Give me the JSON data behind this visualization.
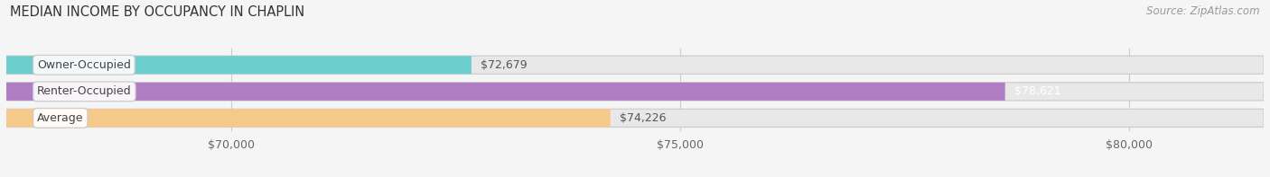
{
  "title": "MEDIAN INCOME BY OCCUPANCY IN CHAPLIN",
  "source": "Source: ZipAtlas.com",
  "categories": [
    "Owner-Occupied",
    "Renter-Occupied",
    "Average"
  ],
  "values": [
    72679,
    78621,
    74226
  ],
  "bar_colors": [
    "#6dcece",
    "#b07ec4",
    "#f5c98a"
  ],
  "bar_bg_color": "#e8e8e8",
  "value_labels": [
    "$72,679",
    "$78,621",
    "$74,226"
  ],
  "value_label_colors": [
    "#555555",
    "#ffffff",
    "#555555"
  ],
  "xlim_min": 67500,
  "xlim_max": 81500,
  "xticks": [
    70000,
    75000,
    80000
  ],
  "xtick_labels": [
    "$70,000",
    "$75,000",
    "$80,000"
  ],
  "title_fontsize": 10.5,
  "source_fontsize": 8.5,
  "label_fontsize": 9,
  "value_fontsize": 9,
  "tick_fontsize": 9,
  "background_color": "#f5f5f5"
}
